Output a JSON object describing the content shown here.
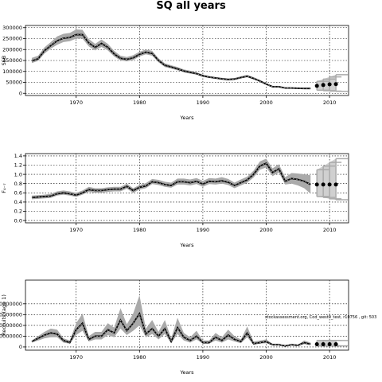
{
  "page": {
    "title": "SQ all years"
  },
  "chart_data": [
    {
      "type": "line",
      "ylabel": "SSB",
      "xlabel": "Years",
      "xlim": [
        1962,
        2013
      ],
      "ylim": [
        -10000,
        310000
      ],
      "xticks": [
        1970,
        1980,
        1990,
        2000,
        2010
      ],
      "yticks": [
        0,
        50000,
        100000,
        150000,
        200000,
        250000,
        300000
      ],
      "ytick_labels": [
        "0",
        "50000",
        "100000",
        "150000",
        "200000",
        "250000",
        "300000"
      ],
      "grid": true,
      "series": [
        {
          "x": [
            1963,
            1964,
            1965,
            1966,
            1967,
            1968,
            1969,
            1970,
            1971,
            1972,
            1973,
            1974,
            1975,
            1976,
            1977,
            1978,
            1979,
            1980,
            1981,
            1982,
            1983,
            1984,
            1985,
            1986,
            1987,
            1988,
            1989,
            1990,
            1991,
            1992,
            1993,
            1994,
            1995,
            1996,
            1997,
            1998,
            1999,
            2000,
            2001,
            2002,
            2003,
            2004,
            2005,
            2006,
            2007
          ],
          "y": [
            148000,
            158000,
            195000,
            218000,
            240000,
            252000,
            255000,
            268000,
            268000,
            230000,
            210000,
            228000,
            210000,
            180000,
            160000,
            155000,
            162000,
            178000,
            188000,
            182000,
            150000,
            128000,
            120000,
            112000,
            102000,
            96000,
            90000,
            80000,
            74000,
            70000,
            66000,
            63000,
            65000,
            72000,
            78000,
            68000,
            56000,
            42000,
            30000,
            30000,
            24000,
            24000,
            23000,
            22000,
            22000
          ],
          "lower": [
            138000,
            148000,
            182000,
            204000,
            222000,
            234000,
            238000,
            250000,
            250000,
            214000,
            196000,
            212000,
            196000,
            168000,
            150000,
            146000,
            152000,
            168000,
            178000,
            172000,
            142000,
            120000,
            113000,
            105000,
            96000,
            90000,
            85000,
            75000,
            70000,
            66000,
            62000,
            59000,
            61000,
            68000,
            73000,
            63000,
            52000,
            38000,
            27000,
            27000,
            21000,
            21000,
            20000,
            19000,
            19000
          ],
          "upper": [
            162000,
            172000,
            210000,
            234000,
            260000,
            272000,
            276000,
            292000,
            290000,
            248000,
            226000,
            246000,
            226000,
            194000,
            172000,
            166000,
            174000,
            190000,
            200000,
            194000,
            160000,
            137000,
            128000,
            120000,
            109000,
            103000,
            96000,
            86000,
            79000,
            75000,
            71000,
            68000,
            70000,
            78000,
            84000,
            74000,
            61000,
            47000,
            34000,
            34000,
            28000,
            28000,
            27000,
            26000,
            26000
          ]
        }
      ],
      "projection": {
        "x": [
          2008,
          2009,
          2010,
          2011
        ],
        "y": [
          34000,
          38000,
          41000,
          42000
        ],
        "lower": [
          14000,
          12000,
          10000,
          9000
        ],
        "upper": [
          55000,
          65000,
          75000,
          85000
        ]
      }
    },
    {
      "type": "line",
      "ylabel": "F₄₋₇",
      "xlabel": "Years",
      "xlim": [
        1962,
        2013
      ],
      "ylim": [
        -0.05,
        1.45
      ],
      "xticks": [
        1970,
        1980,
        1990,
        2000,
        2010
      ],
      "yticks": [
        0.0,
        0.2,
        0.4,
        0.6,
        0.8,
        1.0,
        1.2,
        1.4
      ],
      "ytick_labels": [
        "0.0",
        "0.2",
        "0.4",
        "0.6",
        "0.8",
        "1.0",
        "1.2",
        "1.4"
      ],
      "grid": true,
      "series": [
        {
          "x": [
            1963,
            1964,
            1965,
            1966,
            1967,
            1968,
            1969,
            1970,
            1971,
            1972,
            1973,
            1974,
            1975,
            1976,
            1977,
            1978,
            1979,
            1980,
            1981,
            1982,
            1983,
            1984,
            1985,
            1986,
            1987,
            1988,
            1989,
            1990,
            1991,
            1992,
            1993,
            1994,
            1995,
            1996,
            1997,
            1998,
            1999,
            2000,
            2001,
            2002,
            2003,
            2004,
            2005,
            2006,
            2007
          ],
          "y": [
            0.5,
            0.51,
            0.52,
            0.53,
            0.58,
            0.6,
            0.58,
            0.55,
            0.6,
            0.67,
            0.65,
            0.65,
            0.67,
            0.68,
            0.68,
            0.74,
            0.65,
            0.72,
            0.75,
            0.84,
            0.82,
            0.78,
            0.76,
            0.84,
            0.84,
            0.82,
            0.85,
            0.79,
            0.85,
            0.84,
            0.86,
            0.83,
            0.76,
            0.82,
            0.88,
            1.0,
            1.18,
            1.24,
            1.04,
            1.12,
            0.85,
            0.91,
            0.89,
            0.85,
            0.78
          ],
          "lower": [
            0.46,
            0.47,
            0.48,
            0.49,
            0.54,
            0.56,
            0.54,
            0.51,
            0.56,
            0.62,
            0.6,
            0.6,
            0.62,
            0.63,
            0.63,
            0.69,
            0.6,
            0.67,
            0.7,
            0.79,
            0.77,
            0.73,
            0.71,
            0.78,
            0.78,
            0.76,
            0.79,
            0.73,
            0.79,
            0.78,
            0.8,
            0.77,
            0.7,
            0.76,
            0.82,
            0.93,
            1.1,
            1.15,
            0.96,
            1.04,
            0.78,
            0.8,
            0.76,
            0.7,
            0.58
          ],
          "upper": [
            0.54,
            0.55,
            0.56,
            0.58,
            0.63,
            0.65,
            0.63,
            0.6,
            0.65,
            0.73,
            0.7,
            0.7,
            0.72,
            0.73,
            0.73,
            0.8,
            0.7,
            0.77,
            0.81,
            0.9,
            0.88,
            0.84,
            0.82,
            0.91,
            0.91,
            0.89,
            0.92,
            0.86,
            0.92,
            0.91,
            0.94,
            0.9,
            0.82,
            0.89,
            0.95,
            1.08,
            1.28,
            1.34,
            1.13,
            1.22,
            0.94,
            1.03,
            1.02,
            1.0,
            0.98
          ]
        }
      ],
      "projection": {
        "x": [
          2008,
          2009,
          2010,
          2011
        ],
        "y": [
          0.78,
          0.78,
          0.78,
          0.78
        ],
        "lower": [
          0.52,
          0.5,
          0.47,
          0.45
        ],
        "upper": [
          1.1,
          1.18,
          1.26,
          1.34
        ]
      }
    },
    {
      "type": "line",
      "ylabel": "Recruits (age 1)",
      "xlabel": "Years",
      "xlim": [
        1962,
        2013
      ],
      "ylim": [
        -3000000,
        62000000
      ],
      "xticks": [
        1970,
        1980,
        1990,
        2000,
        2010
      ],
      "yticks": [
        0,
        10000000,
        20000000,
        30000000,
        40000000
      ],
      "ytick_labels": [
        "0",
        "10000000",
        "20000000",
        "30000000",
        "40000000"
      ],
      "grid": true,
      "annotation": "stockassessment.org, Cod_west0_test, r10756 , git: 503",
      "series": [
        {
          "x": [
            1963,
            1964,
            1965,
            1966,
            1967,
            1968,
            1969,
            1970,
            1971,
            1972,
            1973,
            1974,
            1975,
            1976,
            1977,
            1978,
            1979,
            1980,
            1981,
            1982,
            1983,
            1984,
            1985,
            1986,
            1987,
            1988,
            1989,
            1990,
            1991,
            1992,
            1993,
            1994,
            1995,
            1996,
            1997,
            1998,
            1999,
            2000,
            2001,
            2002,
            2003,
            2004,
            2005,
            2006,
            2007
          ],
          "y": [
            5000000,
            8000000,
            11000000,
            13000000,
            12000000,
            6000000,
            4000000,
            16000000,
            22000000,
            7000000,
            10000000,
            10000000,
            16000000,
            13000000,
            25000000,
            15000000,
            22000000,
            31000000,
            12000000,
            17000000,
            10000000,
            17000000,
            5000000,
            18000000,
            9000000,
            6000000,
            10000000,
            4000000,
            4000000,
            9000000,
            6000000,
            11000000,
            7000000,
            5000000,
            13000000,
            3000000,
            4000000,
            5000000,
            2000000,
            2000000,
            1000000,
            2000000,
            1500000,
            4000000,
            2500000
          ],
          "lower": [
            4000000,
            6000000,
            8000000,
            9000000,
            9000000,
            4000000,
            3000000,
            11000000,
            15000000,
            5000000,
            7000000,
            7000000,
            11000000,
            9000000,
            17000000,
            11000000,
            15000000,
            20000000,
            9000000,
            12000000,
            7000000,
            12000000,
            3500000,
            12000000,
            6000000,
            4000000,
            7000000,
            3000000,
            3000000,
            6000000,
            4000000,
            7000000,
            5000000,
            3500000,
            9000000,
            2000000,
            3000000,
            3500000,
            1400000,
            1400000,
            700000,
            1400000,
            1000000,
            2500000,
            1500000
          ],
          "upper": [
            6000000,
            10000000,
            14000000,
            17000000,
            16000000,
            8000000,
            6000000,
            22000000,
            31000000,
            10000000,
            14000000,
            14000000,
            22000000,
            18000000,
            36000000,
            21000000,
            31000000,
            48000000,
            17000000,
            25000000,
            14000000,
            25000000,
            8000000,
            27000000,
            13000000,
            9000000,
            15000000,
            6000000,
            6000000,
            13000000,
            9000000,
            16000000,
            10000000,
            7000000,
            19000000,
            5000000,
            6000000,
            7000000,
            3000000,
            3000000,
            1500000,
            3000000,
            2200000,
            6000000,
            4000000
          ]
        }
      ],
      "projection": {
        "x": [
          2008,
          2009,
          2010,
          2011
        ],
        "y": [
          2500000,
          2500000,
          2500000,
          2500000
        ],
        "lower": [
          1000000,
          1000000,
          1000000,
          1000000
        ],
        "upper": [
          6000000,
          6000000,
          6000000,
          6000000
        ]
      }
    }
  ]
}
